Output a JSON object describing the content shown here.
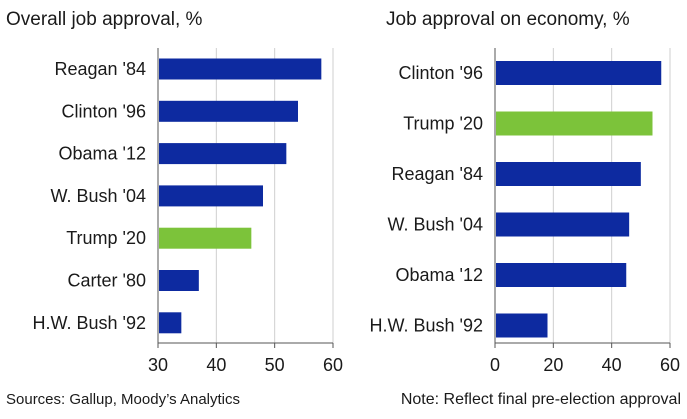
{
  "chart_data": [
    {
      "type": "bar",
      "orientation": "horizontal",
      "title": "Overall job approval, %",
      "categories": [
        "Reagan '84",
        "Clinton '96",
        "Obama '12",
        "W. Bush '04",
        "Trump '20",
        "Carter '80",
        "H.W. Bush '92"
      ],
      "values": [
        58,
        54,
        52,
        48,
        46,
        37,
        34
      ],
      "highlight": "Trump '20",
      "xlim": [
        30,
        60
      ],
      "xticks": [
        "30",
        "40",
        "50",
        "60"
      ],
      "grid": true
    },
    {
      "type": "bar",
      "orientation": "horizontal",
      "title": "Job approval on economy, %",
      "categories": [
        "Clinton '96",
        "Trump '20",
        "Reagan '84",
        "W. Bush '04",
        "Obama '12",
        "H.W. Bush '92"
      ],
      "values": [
        57,
        54,
        50,
        46,
        45,
        18
      ],
      "highlight": "Trump '20",
      "xlim": [
        0,
        60
      ],
      "xticks": [
        "0",
        "20",
        "40",
        "60"
      ],
      "grid": true
    }
  ],
  "colors": {
    "bar": "#0d2aa0",
    "highlight": "#7cc33a",
    "grid": "#cfcfcf",
    "axis": "#555555"
  },
  "footer": {
    "source": "Sources: Gallup, Moody’s Analytics",
    "note": "Note: Reflect final pre-election approval"
  }
}
